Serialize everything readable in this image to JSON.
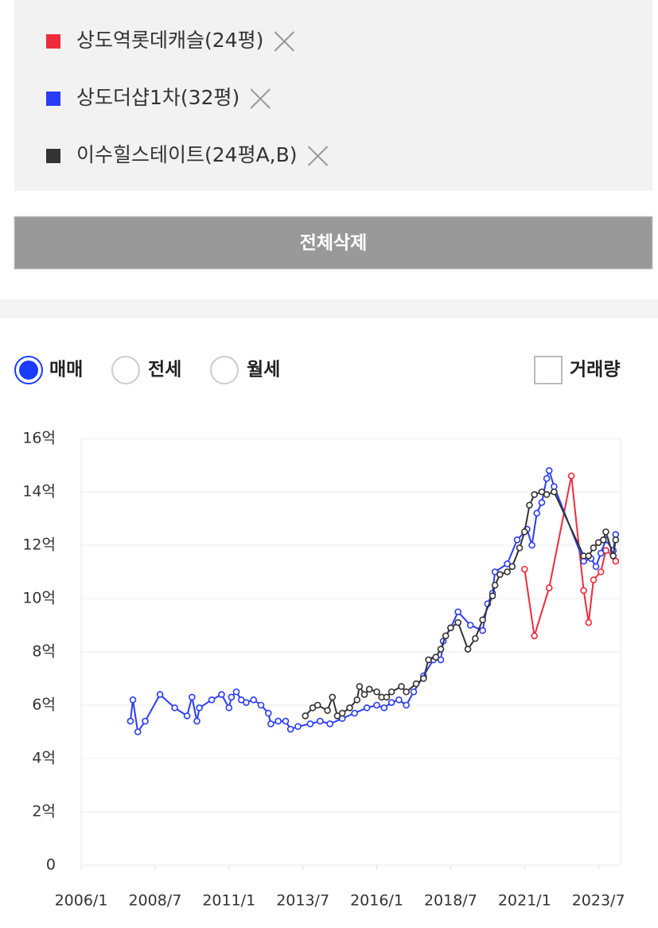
{
  "ui": {
    "delete_all_button": "전체삭제",
    "trade_types": [
      "매매",
      "전세",
      "월세"
    ],
    "volume_checkbox": "거래량"
  },
  "chart_data": {
    "type": "line",
    "xlim": [
      "2006/1",
      "2024/4"
    ],
    "xticks": [
      "2006/1",
      "2008/7",
      "2011/1",
      "2013/7",
      "2016/1",
      "2018/7",
      "2021/1",
      "2023/7"
    ],
    "ylim": [
      0,
      16
    ],
    "yticks": [
      0,
      {
        "value": 2,
        "label": "2억"
      },
      {
        "value": 4,
        "label": "4억"
      },
      {
        "value": 6,
        "label": "6억"
      },
      {
        "value": 8,
        "label": "8억"
      },
      {
        "value": 10,
        "label": "10억"
      },
      {
        "value": 12,
        "label": "12억"
      },
      {
        "value": 14,
        "label": "14억"
      },
      {
        "value": 16,
        "label": "16억"
      }
    ],
    "grid": true,
    "series": [
      {
        "name": "상도역롯데캐슬(24평)",
        "color": "#ee2b3b",
        "x": [
          "2021/1",
          "2021/5",
          "2021/11",
          "2022/8",
          "2023/1",
          "2023/3",
          "2023/5",
          "2023/8",
          "2023/10",
          "2024/1",
          "2024/2"
        ],
        "values": [
          11.1,
          8.6,
          10.4,
          14.6,
          10.3,
          9.1,
          10.7,
          11.0,
          11.8,
          11.6,
          11.4
        ]
      },
      {
        "name": "상도더샵1차(32평)",
        "color": "#2b3cf5",
        "x": [
          "2007/9",
          "2007/10",
          "2007/12",
          "2008/3",
          "2008/9",
          "2009/3",
          "2009/8",
          "2009/10",
          "2009/12",
          "2010/1",
          "2010/6",
          "2010/10",
          "2011/1",
          "2011/2",
          "2011/4",
          "2011/6",
          "2011/8",
          "2011/11",
          "2012/2",
          "2012/5",
          "2012/6",
          "2012/9",
          "2012/12",
          "2013/2",
          "2013/5",
          "2013/10",
          "2014/2",
          "2014/6",
          "2014/11",
          "2015/4",
          "2015/9",
          "2016/1",
          "2016/4",
          "2016/7",
          "2016/10",
          "2017/1",
          "2017/4",
          "2017/8",
          "2017/12",
          "2018/3",
          "2018/4",
          "2018/7",
          "2018/10",
          "2019/3",
          "2019/8",
          "2019/10",
          "2019/12",
          "2020/1",
          "2020/6",
          "2020/10",
          "2021/2",
          "2021/4",
          "2021/6",
          "2021/8",
          "2021/10",
          "2021/11",
          "2022/1",
          "2023/1",
          "2023/4",
          "2023/6",
          "2023/8",
          "2023/10",
          "2024/1",
          "2024/2"
        ],
        "values": [
          5.4,
          6.2,
          5.0,
          5.4,
          6.4,
          5.9,
          5.6,
          6.3,
          5.4,
          5.9,
          6.2,
          6.4,
          5.9,
          6.3,
          6.5,
          6.2,
          6.1,
          6.2,
          6.0,
          5.7,
          5.3,
          5.4,
          5.4,
          5.1,
          5.2,
          5.3,
          5.4,
          5.3,
          5.5,
          5.7,
          5.9,
          6.0,
          5.9,
          6.1,
          6.2,
          6.0,
          6.5,
          7.1,
          7.7,
          7.7,
          8.4,
          8.9,
          9.5,
          9.0,
          8.8,
          9.8,
          10.2,
          11.0,
          11.3,
          12.2,
          12.6,
          12.0,
          13.2,
          13.6,
          14.5,
          14.8,
          14.2,
          11.4,
          11.5,
          11.2,
          11.7,
          12.2,
          11.8,
          12.4
        ]
      },
      {
        "name": "이수힐스테이트(24평A,B)",
        "color": "#333333",
        "x": [
          "2013/8",
          "2013/11",
          "2014/1",
          "2014/5",
          "2014/7",
          "2014/9",
          "2014/11",
          "2015/2",
          "2015/5",
          "2015/6",
          "2015/8",
          "2015/10",
          "2016/1",
          "2016/3",
          "2016/5",
          "2016/7",
          "2016/11",
          "2017/1",
          "2017/5",
          "2017/8",
          "2017/10",
          "2018/1",
          "2018/3",
          "2018/5",
          "2018/7",
          "2018/10",
          "2019/2",
          "2019/5",
          "2019/8",
          "2019/12",
          "2020/1",
          "2020/3",
          "2020/6",
          "2020/8",
          "2020/11",
          "2021/1",
          "2021/3",
          "2021/5",
          "2021/8",
          "2021/10",
          "2022/1",
          "2023/1",
          "2023/3",
          "2023/5",
          "2023/7",
          "2023/9",
          "2023/10",
          "2024/1",
          "2024/2"
        ],
        "values": [
          5.6,
          5.9,
          6.0,
          5.8,
          6.3,
          5.6,
          5.7,
          5.9,
          6.2,
          6.7,
          6.4,
          6.6,
          6.5,
          6.3,
          6.3,
          6.5,
          6.7,
          6.5,
          6.8,
          7.0,
          7.7,
          7.8,
          8.1,
          8.6,
          8.9,
          9.1,
          8.1,
          8.5,
          9.2,
          10.1,
          10.5,
          10.9,
          11.0,
          11.2,
          11.9,
          12.5,
          13.5,
          13.9,
          14.0,
          13.9,
          14.0,
          11.6,
          11.6,
          11.9,
          12.1,
          12.2,
          12.5,
          11.6,
          12.2
        ]
      }
    ]
  }
}
